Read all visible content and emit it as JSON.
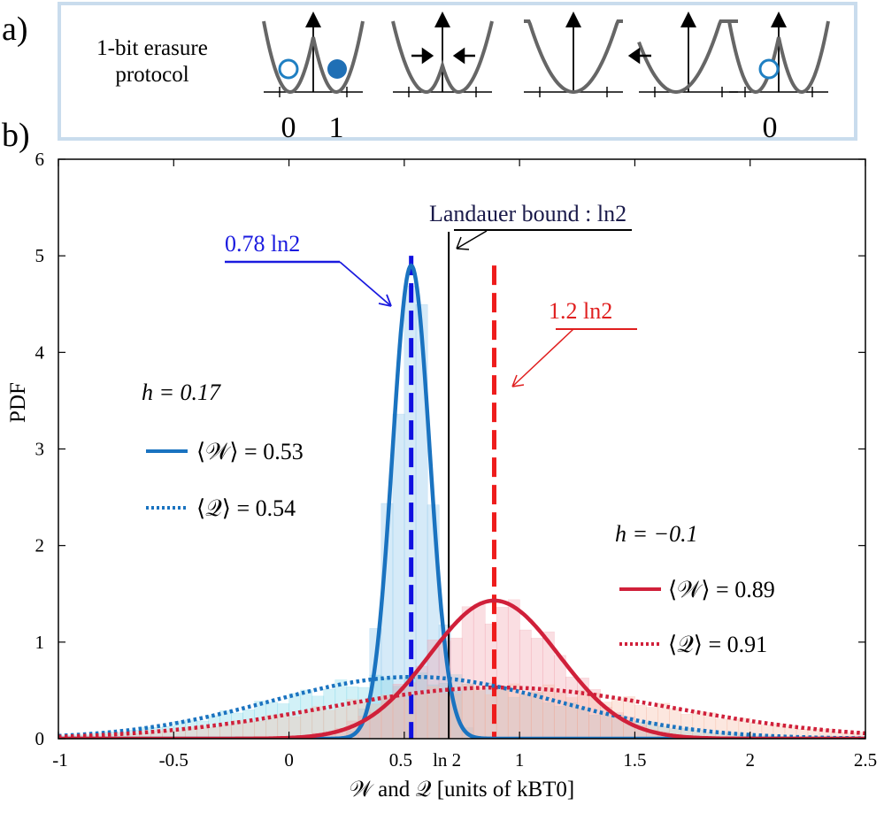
{
  "panel_labels": {
    "a": "a)",
    "b": "b)"
  },
  "protocol": {
    "text": "1-bit erasure protocol",
    "state_labels": [
      {
        "text": "0"
      },
      {
        "text": "1"
      },
      {
        "text": "0"
      }
    ]
  },
  "chart_data": {
    "type": "line",
    "xlabel": "𝒲 and 𝒬  [units of kBT0]",
    "ylabel": "PDF",
    "xlim": [
      -1,
      2.5
    ],
    "ylim": [
      0,
      6
    ],
    "x_ticks": [
      -1,
      -0.5,
      0,
      0.5,
      1,
      1.5,
      2,
      2.5
    ],
    "x_tick_labels": [
      "-1",
      "-0.5",
      "0",
      "0.5",
      "1",
      "1.5",
      "2",
      "2.5"
    ],
    "x_extra_tick": {
      "value": 0.693,
      "label": "ln 2"
    },
    "y_ticks": [
      0,
      1,
      2,
      3,
      4,
      5,
      6
    ],
    "y_tick_labels": [
      "0",
      "1",
      "2",
      "3",
      "4",
      "5",
      "6"
    ],
    "grid": false,
    "series": [
      {
        "h": "0.17",
        "quantity": "W",
        "style": "solid",
        "color": "#1a73c0",
        "mean": 0.53,
        "mean_label": "0.53",
        "sigma": 0.081,
        "peak": 4.9
      },
      {
        "h": "0.17",
        "quantity": "Q",
        "style": "dotted",
        "color": "#1a73c0",
        "mean": 0.54,
        "mean_label": "0.54",
        "sigma": 0.62,
        "peak": 0.64
      },
      {
        "h": "-0.1",
        "quantity": "W",
        "style": "solid",
        "color": "#d0203a",
        "mean": 0.89,
        "mean_label": "0.89",
        "sigma": 0.28,
        "peak": 1.43
      },
      {
        "h": "-0.1",
        "quantity": "Q",
        "style": "dotted",
        "color": "#d0203a",
        "mean": 0.91,
        "mean_label": "0.91",
        "sigma": 0.75,
        "peak": 0.53
      }
    ],
    "histograms": [
      {
        "name": "blue-W-hist",
        "color": "#88c4ea",
        "mean": 0.53,
        "sigma": 0.09,
        "peak": 4.6
      },
      {
        "name": "blue-Q-hist",
        "color": "#7fd6e8",
        "mean": 0.54,
        "sigma": 0.62,
        "peak": 0.62
      },
      {
        "name": "red-W-hist",
        "color": "#f1a0ad",
        "mean": 0.89,
        "sigma": 0.3,
        "peak": 1.35
      },
      {
        "name": "red-Q-hist",
        "color": "#f5b9a2",
        "mean": 0.91,
        "sigma": 0.75,
        "peak": 0.52
      }
    ],
    "vlines": [
      {
        "x": 0.53,
        "style": "dashed",
        "color": "#1010e0"
      },
      {
        "x": 0.693,
        "style": "solid",
        "color": "#000000"
      },
      {
        "x": 0.89,
        "style": "dashed",
        "color": "#ee1c1c"
      }
    ],
    "annotations": {
      "blue_mean": "0.78 ln2",
      "red_mean": "1.2 ln2",
      "landauer": "Landauer bound : ln2"
    },
    "legend_blue": {
      "h": "h = 0.17",
      "w_label": "⟨𝒲⟩ = 0.53",
      "q_label": "⟨𝒬⟩ = 0.54"
    },
    "legend_red": {
      "h": "h = −0.1",
      "w_label": "⟨𝒲⟩ = 0.89",
      "q_label": "⟨𝒬⟩ = 0.91"
    }
  },
  "colors": {
    "blue": "#1a73c0",
    "red": "#d0203a",
    "frame": "#c9dced",
    "potential": "#666666"
  }
}
